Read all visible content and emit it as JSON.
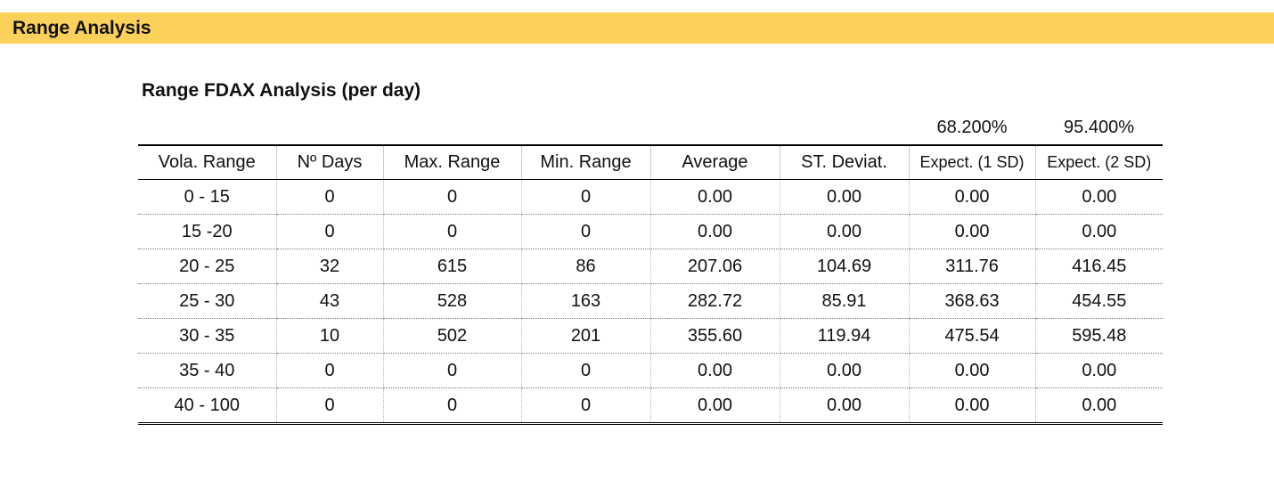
{
  "colors": {
    "banner_bg": "#fbd15c"
  },
  "banner": {
    "title": "Range Analysis"
  },
  "table": {
    "title": "Range FDAX Analysis (per day)",
    "confidence_labels": [
      "68.200%",
      "95.400%"
    ],
    "columns": [
      "Vola. Range",
      "Nº Days",
      "Max. Range",
      "Min. Range",
      "Average",
      "ST. Deviat.",
      "Expect. (1 SD)",
      "Expect. (2 SD)"
    ],
    "rows": [
      [
        "0 - 15",
        "0",
        "0",
        "0",
        "0.00",
        "0.00",
        "0.00",
        "0.00"
      ],
      [
        "15 -20",
        "0",
        "0",
        "0",
        "0.00",
        "0.00",
        "0.00",
        "0.00"
      ],
      [
        "20 - 25",
        "32",
        "615",
        "86",
        "207.06",
        "104.69",
        "311.76",
        "416.45"
      ],
      [
        "25 - 30",
        "43",
        "528",
        "163",
        "282.72",
        "85.91",
        "368.63",
        "454.55"
      ],
      [
        "30 - 35",
        "10",
        "502",
        "201",
        "355.60",
        "119.94",
        "475.54",
        "595.48"
      ],
      [
        "35 - 40",
        "0",
        "0",
        "0",
        "0.00",
        "0.00",
        "0.00",
        "0.00"
      ],
      [
        "40 - 100",
        "0",
        "0",
        "0",
        "0.00",
        "0.00",
        "0.00",
        "0.00"
      ]
    ]
  }
}
